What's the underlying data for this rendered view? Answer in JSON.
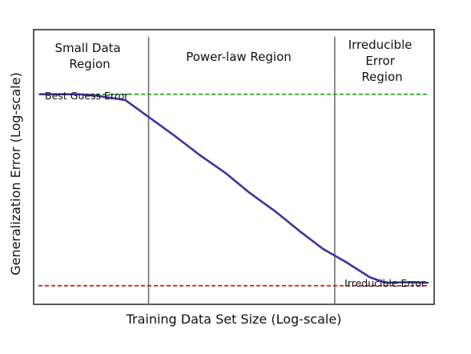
{
  "chart_data": {
    "type": "line",
    "xlabel": "Training Data Set Size (Log-scale)",
    "ylabel": "Generalization Error (Log-scale)",
    "x_scale": "log",
    "y_scale": "log",
    "xlim": [
      0,
      100
    ],
    "ylim": [
      0,
      100
    ],
    "grid": false,
    "ticks_shown": false,
    "series": [
      {
        "color": "#3a35a0",
        "x": [
          0,
          10,
          15,
          22,
          28,
          35,
          41,
          48,
          54,
          61,
          67,
          73,
          79,
          85,
          89,
          94,
          100
        ],
        "y": [
          86.6,
          86.6,
          85.9,
          84.1,
          76.8,
          68.3,
          60.6,
          52.4,
          44.1,
          35.6,
          27.4,
          19.8,
          14.0,
          7.6,
          5.2,
          5.4,
          5.2
        ]
      }
    ],
    "regions": [
      {
        "label_lines": [
          "Small Data",
          "Region"
        ],
        "x_start": 0,
        "x_end": 28
      },
      {
        "label_lines": [
          "Power-law Region"
        ],
        "x_start": 28,
        "x_end": 76
      },
      {
        "label_lines": [
          "Irreducible",
          "Error",
          "Region"
        ],
        "x_start": 76,
        "x_end": 100
      }
    ],
    "reference_lines": [
      {
        "label": "Best Guess Error",
        "y": 86.6,
        "color": "#22a822",
        "style": "dashed",
        "label_position": "above-left"
      },
      {
        "label": "Irreducible Error",
        "y": 3.9,
        "color": "#cc1a1a",
        "style": "dashed",
        "label_position": "below-right"
      }
    ],
    "boundaries_x": [
      28,
      76
    ],
    "boundary_color": "#707070"
  }
}
